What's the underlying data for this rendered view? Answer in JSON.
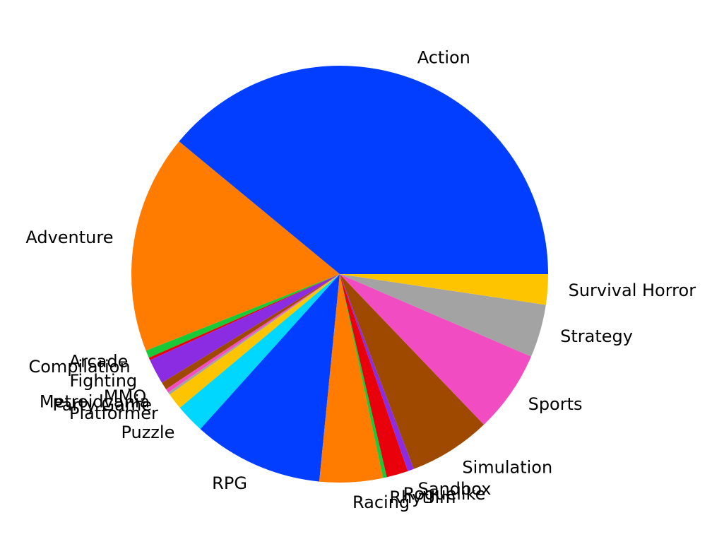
{
  "chart_data": {
    "type": "pie",
    "title": "",
    "start_angle_deg": 0,
    "direction": "counterclockwise",
    "slices": [
      {
        "label": "Action",
        "value": 39.8,
        "color": "#023eff"
      },
      {
        "label": "Adventure",
        "value": 17.3,
        "color": "#ff7c00"
      },
      {
        "label": "Arcade",
        "value": 0.6,
        "color": "#1ac938"
      },
      {
        "label": "Compilation",
        "value": 0.2,
        "color": "#e8000b"
      },
      {
        "label": "Fighting",
        "value": 2.0,
        "color": "#8b2be2"
      },
      {
        "label": "MMO",
        "value": 0.6,
        "color": "#9f4800"
      },
      {
        "label": "Metroidvania",
        "value": 0.3,
        "color": "#f14cc1"
      },
      {
        "label": "Party Game",
        "value": 0.2,
        "color": "#a3a3a3"
      },
      {
        "label": "Platformer",
        "value": 1.3,
        "color": "#ffc400"
      },
      {
        "label": "Puzzle",
        "value": 2.3,
        "color": "#00d7ff"
      },
      {
        "label": "RPG",
        "value": 10.3,
        "color": "#023eff"
      },
      {
        "label": "Racing",
        "value": 5.0,
        "color": "#ff7c00"
      },
      {
        "label": "Rhythm",
        "value": 0.3,
        "color": "#1ac938"
      },
      {
        "label": "Roguelike",
        "value": 1.7,
        "color": "#e8000b"
      },
      {
        "label": "Sandbox",
        "value": 0.5,
        "color": "#8b2be2"
      },
      {
        "label": "Simulation",
        "value": 6.5,
        "color": "#9f4800"
      },
      {
        "label": "Sports",
        "value": 6.5,
        "color": "#f14cc1"
      },
      {
        "label": "Strategy",
        "value": 4.2,
        "color": "#a3a3a3"
      },
      {
        "label": "Survival Horror",
        "value": 2.4,
        "color": "#ffc400"
      }
    ]
  }
}
